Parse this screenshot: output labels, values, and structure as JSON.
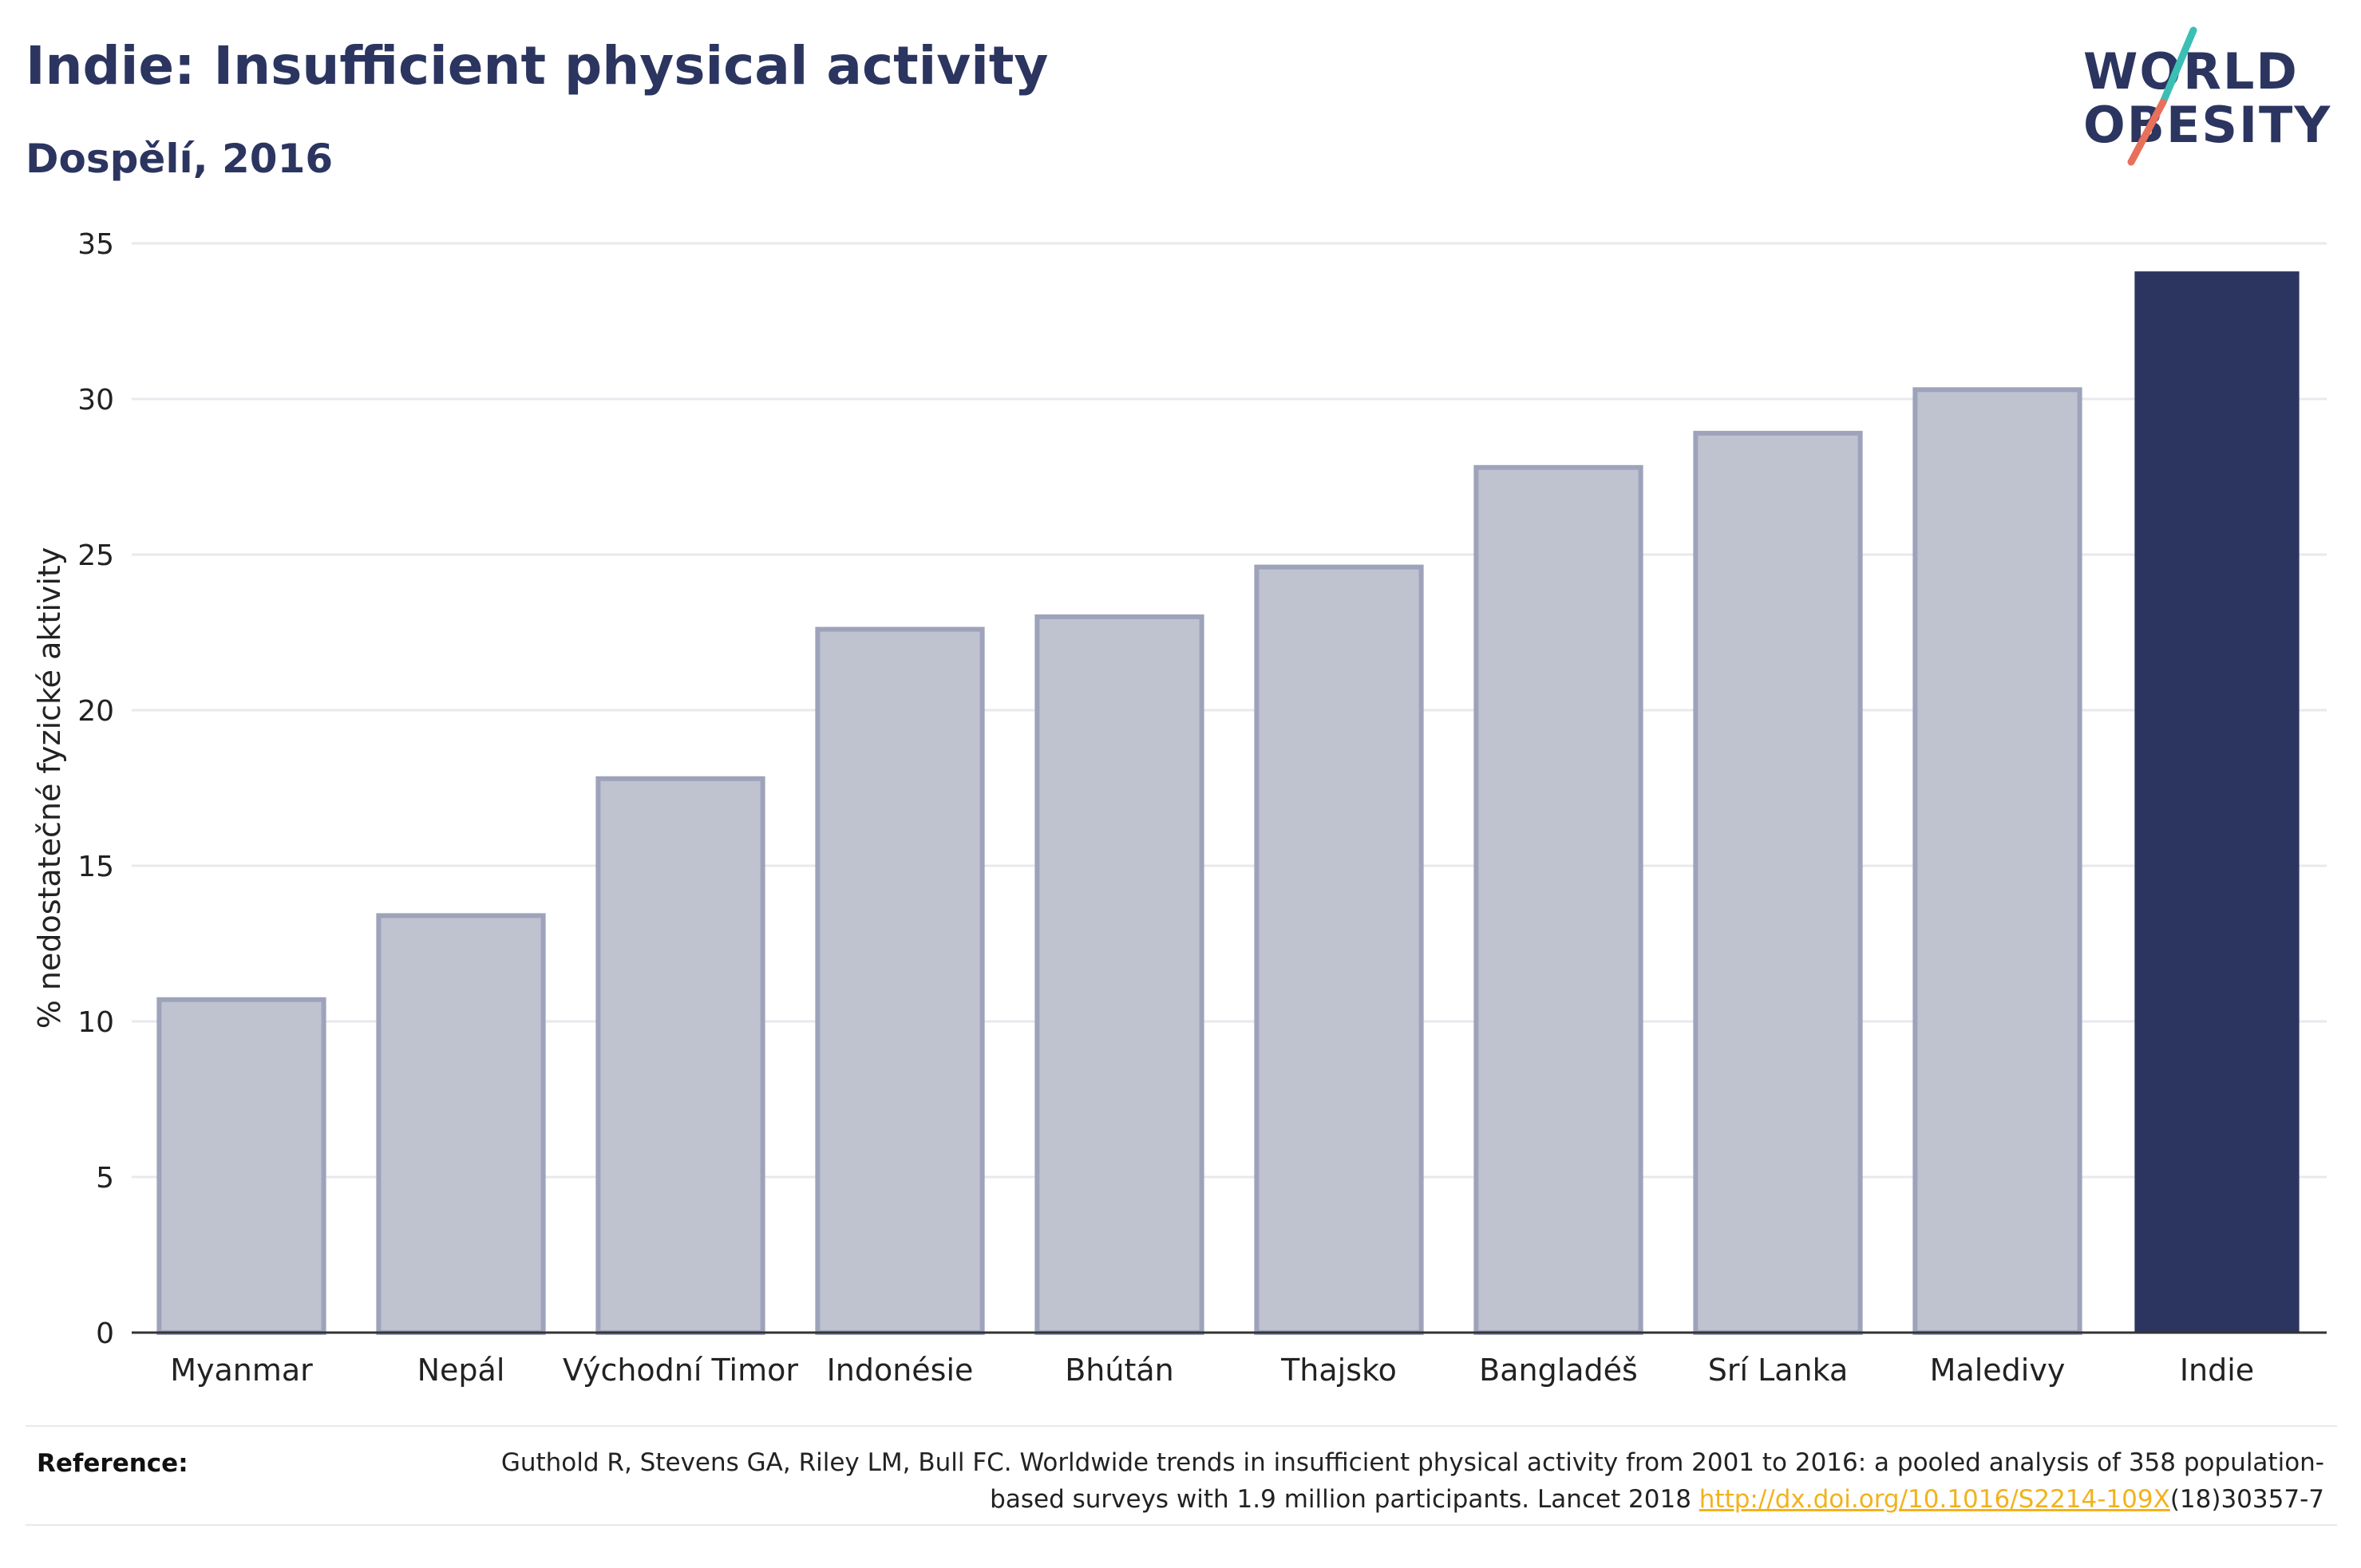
{
  "header": {
    "title": "Indie: Insufficient physical activity",
    "subtitle": "Dospělí, 2016"
  },
  "logo": {
    "line1": "WORLD",
    "line2": "OBESITY",
    "slash_colors": [
      "#3bbfb4",
      "#e8705a"
    ]
  },
  "colors": {
    "highlight_bar": "#2b3560",
    "other_bar_fill": "#bfc2cf",
    "other_bar_stroke": "#9ea3bb",
    "gridline": "#e8e8ee",
    "axis_line": "#333333",
    "link": "#f2b21c"
  },
  "chart_data": {
    "type": "bar",
    "categories": [
      "Myanmar",
      "Nepál",
      "Východní Timor",
      "Indonésie",
      "Bhútán",
      "Thajsko",
      "Bangladéš",
      "Srí Lanka",
      "Maledivy",
      "Indie"
    ],
    "values": [
      10.7,
      13.4,
      17.8,
      22.6,
      23.0,
      24.6,
      27.8,
      28.9,
      30.3,
      34.1
    ],
    "highlight": "Indie",
    "ylabel": "% nedostatečné fyzické aktivity",
    "xlabel": "",
    "ylim": [
      0,
      35
    ],
    "yticks": [
      0,
      5,
      10,
      15,
      20,
      25,
      30,
      35
    ],
    "grid": true
  },
  "reference": {
    "label": "Reference:",
    "text_before": "Guthold R, Stevens GA, Riley LM, Bull FC. Worldwide trends in insufficient physical activity from 2001 to 2016: a pooled analysis of 358 population-based surveys with 1.9 million participants. Lancet 2018 ",
    "link_text": "http://dx.doi.org/10.1016/S2214-109X",
    "text_after": "(18)30357-7"
  }
}
